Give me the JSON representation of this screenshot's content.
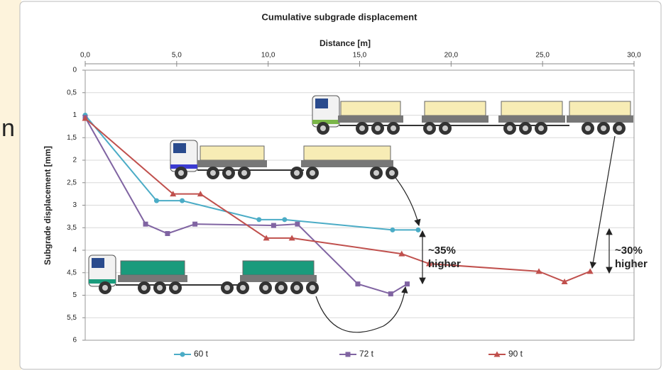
{
  "side_text": "n",
  "chart_data": {
    "type": "line",
    "title": "Cumulative subgrade displacement",
    "x_label": "Distance [m]",
    "y_label": "Subgrade displacement [mm]",
    "xlim": [
      0,
      30
    ],
    "xticks": [
      {
        "value": 0,
        "label": "0,0"
      },
      {
        "value": 5,
        "label": "5,0"
      },
      {
        "value": 10,
        "label": "10,0"
      },
      {
        "value": 15,
        "label": "15,0"
      },
      {
        "value": 20,
        "label": "20,0"
      },
      {
        "value": 25,
        "label": "25,0"
      },
      {
        "value": 30,
        "label": "30,0"
      }
    ],
    "ylim": [
      0,
      6
    ],
    "y_reversed": true,
    "yticks": [
      0,
      {
        "value": 0.5,
        "label": "0,5"
      },
      1,
      {
        "value": 1.5,
        "label": "1,5"
      },
      2,
      {
        "value": 2.5,
        "label": "2,5"
      },
      3,
      {
        "value": 3.5,
        "label": "3,5"
      },
      4,
      {
        "value": 4.5,
        "label": "4,5"
      },
      5,
      {
        "value": 5.5,
        "label": "5,5"
      },
      6
    ],
    "grid": true,
    "series": [
      {
        "name": "60 t",
        "color": "#4bacc6",
        "marker": "circle",
        "x": [
          0,
          3.9,
          5.3,
          9.5,
          10.9,
          16.8,
          18.2
        ],
        "values": [
          1.0,
          2.9,
          2.9,
          3.32,
          3.32,
          3.55,
          3.55
        ]
      },
      {
        "name": "72 t",
        "color": "#8064a2",
        "marker": "square",
        "x": [
          0,
          3.3,
          4.5,
          6.0,
          10.3,
          11.6,
          14.9,
          16.7,
          17.6
        ],
        "values": [
          1.05,
          3.42,
          3.63,
          3.42,
          3.45,
          3.42,
          4.75,
          4.97,
          4.75
        ]
      },
      {
        "name": "90 t",
        "color": "#c0504d",
        "marker": "triangle",
        "x": [
          0,
          4.8,
          6.3,
          9.9,
          11.3,
          17.3,
          18.8,
          24.8,
          26.2,
          27.6
        ],
        "values": [
          1.07,
          2.75,
          2.75,
          3.73,
          3.73,
          4.08,
          4.3,
          4.47,
          4.7,
          4.47
        ]
      }
    ],
    "annotations": [
      [
        "~35%",
        "higher"
      ],
      [
        "~30%",
        "higher"
      ]
    ]
  }
}
